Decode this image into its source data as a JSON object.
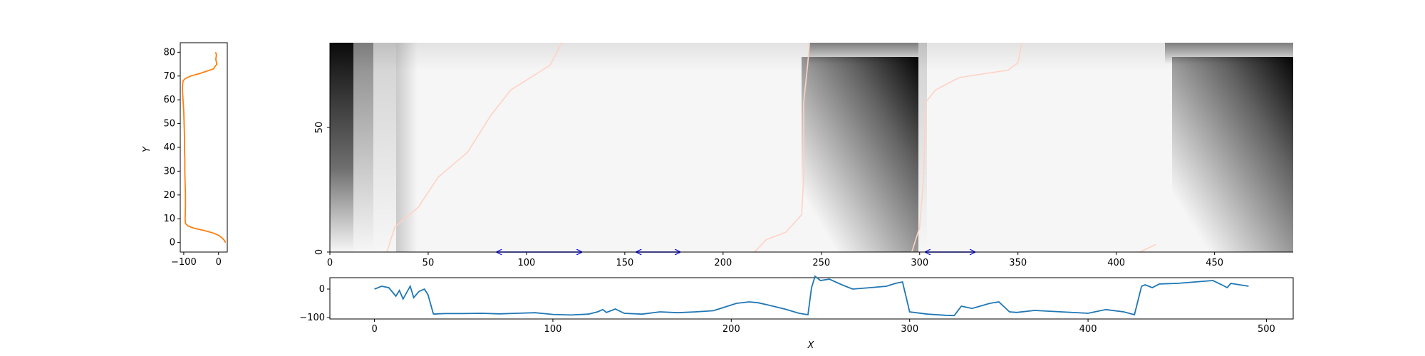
{
  "chart_data": [
    {
      "type": "line",
      "panel": "left-profile",
      "xlabel": "",
      "ylabel": "Y",
      "xlim": [
        -110,
        25
      ],
      "ylim": [
        -4,
        84
      ],
      "xticks": [
        -100,
        0
      ],
      "yticks": [
        0,
        10,
        20,
        30,
        40,
        50,
        60,
        70,
        80
      ],
      "line_color": "#ff7f0e",
      "series": [
        {
          "x": [
            20,
            16,
            10,
            0,
            -15,
            -40,
            -70,
            -88,
            -95,
            -96,
            -95,
            -95,
            -96,
            -97,
            -97,
            -98,
            -98,
            -99,
            -100,
            -104,
            -102,
            -95,
            -80,
            -55,
            -35,
            -15,
            -5,
            -8,
            -6,
            -9
          ],
          "y": [
            0,
            1,
            2,
            3,
            4,
            5,
            6,
            7,
            8,
            10,
            15,
            20,
            25,
            30,
            35,
            40,
            45,
            50,
            55,
            65,
            68,
            69,
            70,
            71,
            72,
            73,
            75,
            77,
            79,
            80
          ]
        }
      ]
    },
    {
      "type": "heatmap",
      "panel": "main-image",
      "colormap": "grayscale",
      "xlim": [
        0,
        490
      ],
      "ylim": [
        0,
        80
      ],
      "xticks": [
        0,
        50,
        100,
        150,
        200,
        250,
        300,
        350,
        400,
        450
      ],
      "yticks": [
        0,
        50
      ],
      "segments": [
        {
          "start": 0,
          "end": 12,
          "level": "black"
        },
        {
          "start": 12,
          "end": 22,
          "level": "dark-gray"
        },
        {
          "start": 22,
          "end": 33,
          "level": "light-gray"
        },
        {
          "start": 33,
          "end": 235,
          "level": "near-white"
        },
        {
          "start": 245,
          "end": 298,
          "level": "dark-corner"
        },
        {
          "start": 298,
          "end": 428,
          "level": "near-white"
        },
        {
          "start": 428,
          "end": 490,
          "level": "dark-corner"
        }
      ],
      "overlay_lines": [
        {
          "color": "#ffd2c4",
          "points": [
            [
              29,
              0
            ],
            [
              33,
              10
            ],
            [
              45,
              18
            ],
            [
              55,
              30
            ],
            [
              70,
              40
            ],
            [
              82,
              55
            ],
            [
              92,
              65
            ],
            [
              112,
              75
            ],
            [
              118,
              84
            ]
          ]
        },
        {
          "color": "#ffd2c4",
          "points": [
            [
              216,
              0
            ],
            [
              222,
              5
            ],
            [
              232,
              8
            ],
            [
              240,
              15
            ],
            [
              241,
              30
            ],
            [
              241,
              60
            ],
            [
              243,
              75
            ],
            [
              244,
              84
            ]
          ]
        },
        {
          "color": "#ffd2c4",
          "points": [
            [
              296,
              0
            ],
            [
              300,
              10
            ],
            [
              302,
              30
            ],
            [
              303,
              60
            ],
            [
              308,
              65
            ],
            [
              320,
              70
            ],
            [
              345,
              73
            ],
            [
              350,
              76
            ],
            [
              352,
              84
            ]
          ]
        },
        {
          "color": "#ffd2c4",
          "points": [
            [
              412,
              0
            ],
            [
              420,
              3
            ]
          ]
        }
      ],
      "annotations": [
        {
          "type": "double-arrow",
          "x_start": 85,
          "x_end": 128,
          "color": "#0000ff"
        },
        {
          "type": "double-arrow",
          "x_start": 156,
          "x_end": 178,
          "color": "#0000ff"
        },
        {
          "type": "double-arrow",
          "x_start": 303,
          "x_end": 328,
          "color": "#0000ff"
        }
      ]
    },
    {
      "type": "line",
      "panel": "bottom-profile",
      "xlabel": "X",
      "ylabel": "",
      "xlim": [
        -25,
        515
      ],
      "ylim": [
        -105,
        40
      ],
      "xticks": [
        0,
        100,
        200,
        300,
        400,
        500
      ],
      "yticks": [
        -100,
        0
      ],
      "line_color": "#1f77b4",
      "series": [
        {
          "x": [
            0,
            4,
            8,
            12,
            14,
            16,
            20,
            22,
            25,
            28,
            30,
            33,
            34,
            35,
            40,
            50,
            60,
            70,
            80,
            90,
            100,
            110,
            120,
            125,
            128,
            130,
            135,
            140,
            150,
            160,
            170,
            180,
            190,
            198,
            203,
            210,
            215,
            220,
            230,
            238,
            243,
            245,
            247,
            250,
            255,
            262,
            268,
            278,
            287,
            292,
            296,
            300,
            310,
            320,
            325,
            329,
            335,
            345,
            350,
            356,
            360,
            370,
            385,
            400,
            410,
            420,
            426,
            430,
            432,
            436,
            440,
            450,
            460,
            470,
            475,
            478,
            480,
            485,
            490
          ],
          "y": [
            0,
            10,
            5,
            -25,
            -5,
            -35,
            10,
            -30,
            -8,
            0,
            -20,
            -87,
            -88,
            -87,
            -86,
            -86,
            -85,
            -87,
            -85,
            -83,
            -89,
            -91,
            -88,
            -80,
            -72,
            -82,
            -70,
            -85,
            -88,
            -80,
            -83,
            -80,
            -76,
            -60,
            -50,
            -45,
            -48,
            -55,
            -70,
            -85,
            -90,
            5,
            45,
            30,
            35,
            15,
            0,
            5,
            10,
            20,
            25,
            -80,
            -88,
            -92,
            -93,
            -60,
            -68,
            -50,
            -45,
            -80,
            -82,
            -75,
            -80,
            -85,
            -72,
            -80,
            -90,
            10,
            15,
            5,
            18,
            20,
            25,
            30,
            15,
            5,
            20,
            15,
            10
          ]
        }
      ]
    }
  ]
}
